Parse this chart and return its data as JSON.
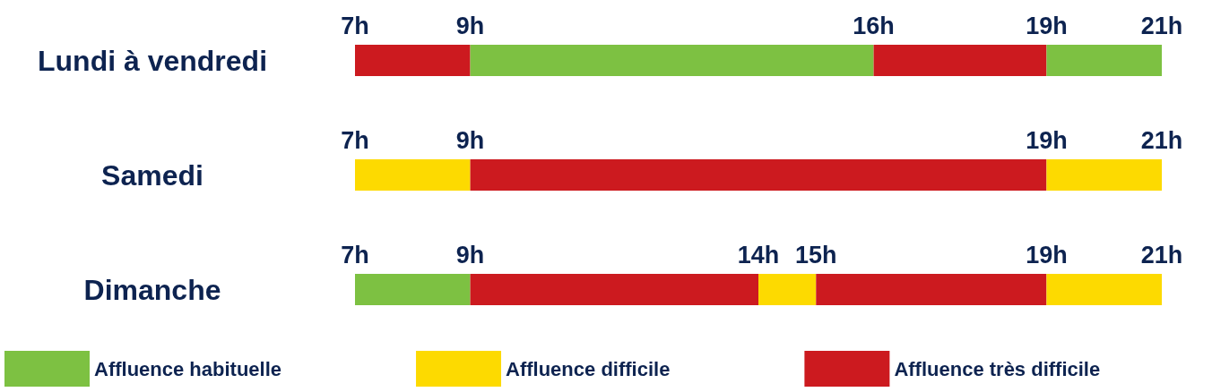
{
  "chart_data": [
    {
      "type": "bar",
      "orientation": "horizontal",
      "categories": [
        "Lundi à vendredi"
      ],
      "xlim": [
        7,
        21
      ],
      "xticks": [
        {
          "value": 7,
          "label": "7h"
        },
        {
          "value": 9,
          "label": "9h"
        },
        {
          "value": 16,
          "label": "16h"
        },
        {
          "value": 19,
          "label": "19h"
        },
        {
          "value": 21,
          "label": "21h"
        }
      ],
      "series": [
        {
          "color": "#cc1a1f",
          "values": [
            2
          ],
          "base": [
            7
          ]
        },
        {
          "color": "#7dc142",
          "values": [
            7
          ],
          "base": [
            9
          ]
        },
        {
          "color": "#cc1a1f",
          "values": [
            3
          ],
          "base": [
            16
          ]
        },
        {
          "color": "#7dc142",
          "values": [
            2
          ],
          "base": [
            19
          ]
        }
      ]
    },
    {
      "type": "bar",
      "orientation": "horizontal",
      "categories": [
        "Samedi"
      ],
      "xlim": [
        7,
        21
      ],
      "xticks": [
        {
          "value": 7,
          "label": "7h"
        },
        {
          "value": 9,
          "label": "9h"
        },
        {
          "value": 19,
          "label": "19h"
        },
        {
          "value": 21,
          "label": "21h"
        }
      ],
      "series": [
        {
          "color": "#fdda00",
          "values": [
            2
          ],
          "base": [
            7
          ]
        },
        {
          "color": "#cc1a1f",
          "values": [
            10
          ],
          "base": [
            9
          ]
        },
        {
          "color": "#fdda00",
          "values": [
            2
          ],
          "base": [
            19
          ]
        }
      ]
    },
    {
      "type": "bar",
      "orientation": "horizontal",
      "categories": [
        "Dimanche"
      ],
      "xlim": [
        7,
        21
      ],
      "xticks": [
        {
          "value": 7,
          "label": "7h"
        },
        {
          "value": 9,
          "label": "9h"
        },
        {
          "value": 14,
          "label": "14h"
        },
        {
          "value": 15,
          "label": "15h"
        },
        {
          "value": 19,
          "label": "19h"
        },
        {
          "value": 21,
          "label": "21h"
        }
      ],
      "legend": "bottom",
      "series": [
        {
          "name": "Affluence habituelle",
          "color": "#7dc142",
          "values": [
            2
          ],
          "base": [
            7
          ]
        },
        {
          "name": "Affluence difficile",
          "color": "#fdda00",
          "values": [
            1
          ],
          "base": [
            14
          ]
        },
        {
          "name": "Affluence très difficile",
          "color": "#cc1a1f",
          "values": [
            5
          ],
          "base": [
            9
          ]
        },
        {
          "color": "#cc1a1f",
          "values": [
            4
          ],
          "base": [
            15
          ]
        },
        {
          "color": "#fdda00",
          "values": [
            2
          ],
          "base": [
            19
          ]
        }
      ]
    }
  ]
}
